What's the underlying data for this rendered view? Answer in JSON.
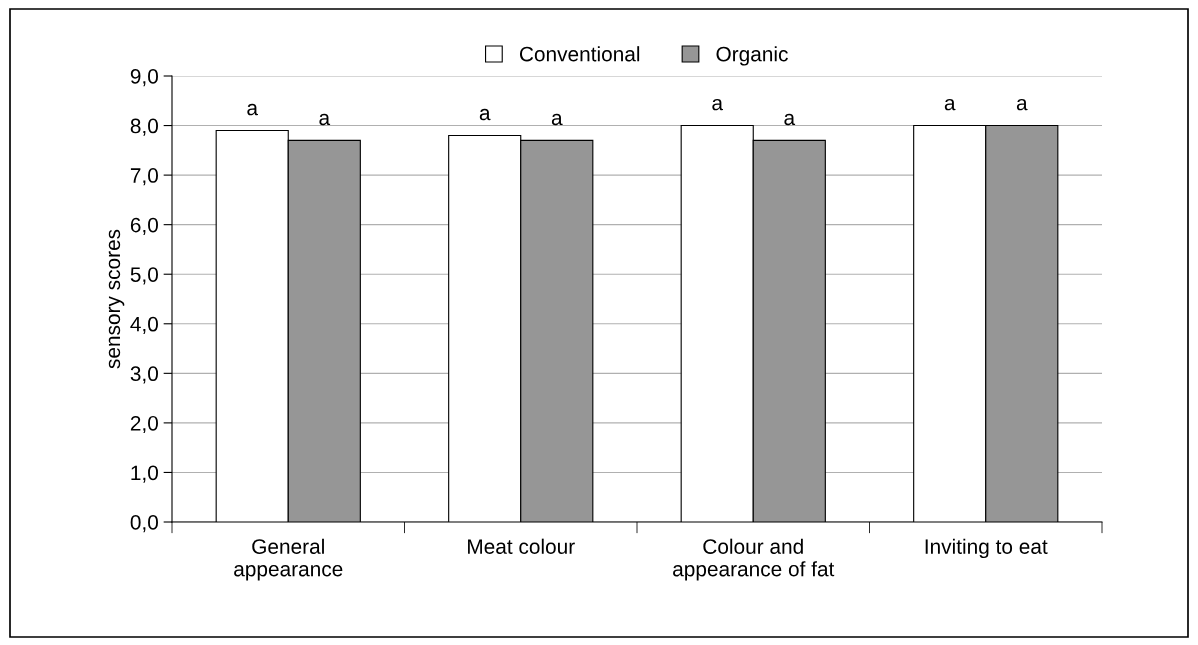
{
  "chart_data": {
    "type": "bar",
    "ylabel": "sensory scores",
    "categories": [
      "General\nappearance",
      "Meat colour",
      "Colour and\nappearance of fat",
      "Inviting to eat"
    ],
    "series": [
      {
        "name": "Conventional",
        "color": "#ffffff",
        "values": [
          7.9,
          7.8,
          8.0,
          8.0
        ],
        "value_labels": [
          "a",
          "a",
          "a",
          "a"
        ]
      },
      {
        "name": "Organic",
        "color": "#969696",
        "values": [
          7.7,
          7.7,
          7.7,
          8.0
        ],
        "value_labels": [
          "a",
          "a",
          "a",
          "a"
        ]
      }
    ],
    "ylim": [
      0,
      9
    ],
    "yticks": [
      {
        "value": 0,
        "label": "0,0"
      },
      {
        "value": 1,
        "label": "1,0"
      },
      {
        "value": 2,
        "label": "2,0"
      },
      {
        "value": 3,
        "label": "3,0"
      },
      {
        "value": 4,
        "label": "4,0"
      },
      {
        "value": 5,
        "label": "5,0"
      },
      {
        "value": 6,
        "label": "6,0"
      },
      {
        "value": 7,
        "label": "7,0"
      },
      {
        "value": 8,
        "label": "8,0"
      },
      {
        "value": 9,
        "label": "9,0"
      }
    ],
    "grid": "y",
    "legend": "top"
  }
}
